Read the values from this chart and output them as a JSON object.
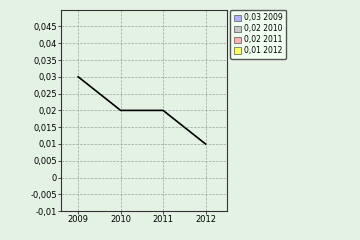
{
  "x": [
    2009,
    2010,
    2011,
    2012
  ],
  "y": [
    0.03,
    0.02,
    0.02,
    0.01
  ],
  "ylim": [
    -0.01,
    0.05
  ],
  "xlim": [
    2008.6,
    2012.5
  ],
  "yticks": [
    -0.01,
    -0.005,
    0,
    0.005,
    0.01,
    0.015,
    0.02,
    0.025,
    0.03,
    0.035,
    0.04,
    0.045
  ],
  "xticks": [
    2009,
    2010,
    2011,
    2012
  ],
  "xtick_labels": [
    "2009",
    "2010",
    "2011",
    "2012"
  ],
  "ytick_labels": [
    "-0,01",
    "-0,005",
    "0",
    "0,005",
    "0,01",
    "0,015",
    "0,02",
    "0,025",
    "0,03",
    "0,035",
    "0,04",
    "0,045"
  ],
  "line_color": "#000000",
  "background_color": "#e4f2e4",
  "plot_bg_color": "#e4f2e4",
  "grid_color": "#999999",
  "legend_labels": [
    "0,03 2009",
    "0,02 2010",
    "0,02 2011",
    "0,01 2012"
  ],
  "legend_colors": [
    "#b0b0ff",
    "#c8c8c8",
    "#ffb0b0",
    "#ffff60"
  ],
  "legend_edge_color": "#555555",
  "legend_face_color": "#f0fff0"
}
